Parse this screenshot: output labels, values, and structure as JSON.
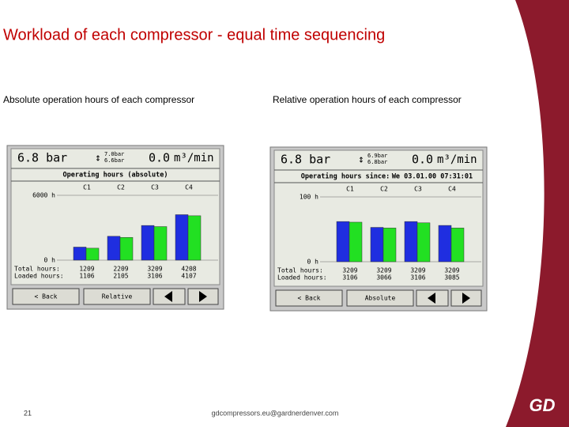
{
  "title": "Workload of each compressor - equal time sequencing",
  "panels": [
    {
      "caption": "Absolute operation hours of each compressor",
      "pressure": "6.8 bar",
      "setpoint_high": "7.0bar",
      "setpoint_low": "6.6bar",
      "flow": "0.0",
      "flow_unit": "m³/min",
      "section": [
        "Operating hours (absolute)"
      ],
      "ylim": [
        0,
        6000
      ],
      "yticks": [
        {
          "value": 6000,
          "label": "6000 h"
        },
        {
          "value": 0,
          "label": "0 h"
        }
      ],
      "columns": [
        "C1",
        "C2",
        "C3",
        "C4"
      ],
      "total_label": "Total hours:",
      "loaded_label": "Loaded hours:",
      "total": [
        1209,
        2209,
        3209,
        4208
      ],
      "loaded": [
        1106,
        2105,
        3106,
        4107
      ],
      "buttons": [
        "< Back",
        "Relative"
      ]
    },
    {
      "caption": "Relative operation hours of each compressor",
      "pressure": "6.8 bar",
      "setpoint_high": "6.9bar",
      "setpoint_low": "6.8bar",
      "flow": "0.0",
      "flow_unit": "m³/min",
      "section": [
        "Operating hours since:",
        "We 03.01.00 07:31:01"
      ],
      "ylim": [
        0,
        100
      ],
      "yticks": [
        {
          "value": 100,
          "label": "100 h"
        },
        {
          "value": 0,
          "label": "0 h"
        }
      ],
      "columns": [
        "C1",
        "C2",
        "C3",
        "C4"
      ],
      "total_label": "Total hours:",
      "loaded_label": "Loaded hours:",
      "total": [
        3209,
        3209,
        3209,
        3209
      ],
      "loaded": [
        3106,
        3066,
        3106,
        3085
      ],
      "bars": {
        "total": [
          62,
          53,
          62,
          56
        ],
        "loaded": [
          61,
          52,
          60,
          52
        ]
      },
      "buttons": [
        "< Back",
        "Absolute"
      ]
    }
  ],
  "footer": {
    "page": "21",
    "contact": "gdcompressors.eu@gardnerdenver.com",
    "logo": "GD"
  }
}
